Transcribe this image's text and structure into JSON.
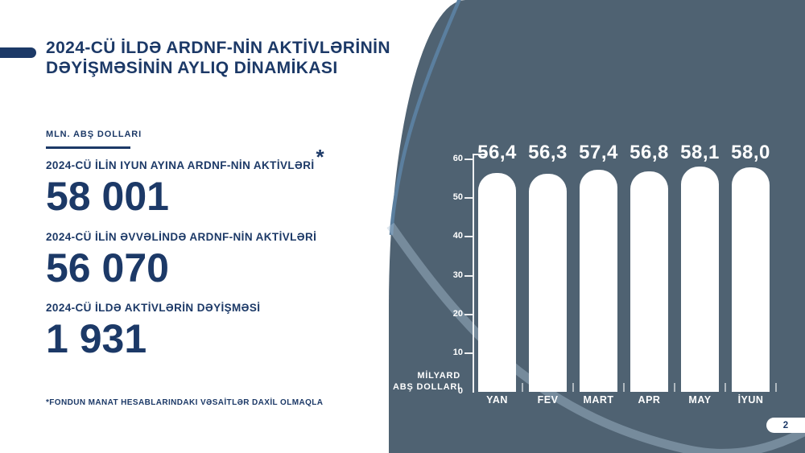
{
  "page": {
    "number": "2"
  },
  "title": {
    "line1": "2024-CÜ İLDƏ ARDNF-NİN AKTİVLƏRİNİN",
    "line2": "DƏYİŞMƏSİNİN AYLIQ DİNAMİKASI"
  },
  "unit_label": "MLN. ABŞ DOLLARI",
  "stats": [
    {
      "label": "2024-CÜ İLİN IYUN AYINA ARDNF-NİN AKTİVLƏRİ",
      "asterisk": "*",
      "value": "58 001"
    },
    {
      "label": "2024-CÜ İLİN ƏVVƏLİNDƏ ARDNF-NİN AKTİVLƏRİ",
      "asterisk": "",
      "value": "56 070"
    },
    {
      "label": "2024-CÜ İLDƏ AKTİVLƏRİN DƏYİŞMƏSİ",
      "asterisk": "",
      "value": "1 931"
    }
  ],
  "footnote": "*FONDUN MANAT HESABLARINDAKI VƏSAİTLƏR DAXİL OLMAQLA",
  "colors": {
    "navy": "#1c3967",
    "slate_background": "#4f6272",
    "decorative_curve": "#5b7f9f",
    "bar": "#ffffff"
  },
  "chart_data": {
    "type": "bar",
    "categories": [
      "YAN",
      "FEV",
      "MART",
      "APR",
      "MAY",
      "İYUN"
    ],
    "values": [
      56.4,
      56.3,
      57.4,
      56.8,
      58.1,
      58.0
    ],
    "value_labels": [
      "56,4",
      "56,3",
      "57,4",
      "56,8",
      "58,1",
      "58,0"
    ],
    "title": "",
    "xlabel": "",
    "ylabel_lines": [
      "MİLYARD",
      "ABŞ DOLLARI"
    ],
    "y_ticks": [
      0,
      10,
      20,
      30,
      40,
      50,
      60
    ],
    "ylim": [
      0,
      60
    ],
    "grid": false,
    "legend": false,
    "bar_color": "#ffffff"
  }
}
